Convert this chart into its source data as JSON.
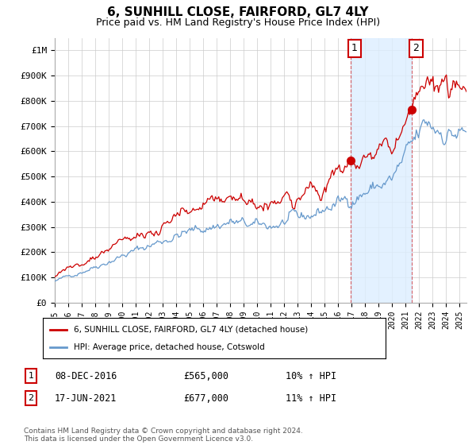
{
  "title": "6, SUNHILL CLOSE, FAIRFORD, GL7 4LY",
  "subtitle": "Price paid vs. HM Land Registry's House Price Index (HPI)",
  "ylabel_ticks": [
    "£0",
    "£100K",
    "£200K",
    "£300K",
    "£400K",
    "£500K",
    "£600K",
    "£700K",
    "£800K",
    "£900K",
    "£1M"
  ],
  "ytick_values": [
    0,
    100000,
    200000,
    300000,
    400000,
    500000,
    600000,
    700000,
    800000,
    900000,
    1000000
  ],
  "ylim": [
    0,
    1050000
  ],
  "xlim_start": 1995.0,
  "xlim_end": 2025.5,
  "red_line_color": "#cc0000",
  "blue_line_color": "#6699cc",
  "shade_color": "#ddeeff",
  "marker1_x": 2016.92,
  "marker1_y": 565000,
  "marker2_x": 2021.46,
  "marker2_y": 677000,
  "vline1_x": 2016.92,
  "vline2_x": 2021.46,
  "legend_label_red": "6, SUNHILL CLOSE, FAIRFORD, GL7 4LY (detached house)",
  "legend_label_blue": "HPI: Average price, detached house, Cotswold",
  "table_rows": [
    {
      "num": "1",
      "date": "08-DEC-2016",
      "price": "£565,000",
      "hpi": "10% ↑ HPI"
    },
    {
      "num": "2",
      "date": "17-JUN-2021",
      "price": "£677,000",
      "hpi": "11% ↑ HPI"
    }
  ],
  "footnote": "Contains HM Land Registry data © Crown copyright and database right 2024.\nThis data is licensed under the Open Government Licence v3.0.",
  "background_color": "#ffffff",
  "grid_color": "#cccccc",
  "title_fontsize": 11,
  "subtitle_fontsize": 9
}
